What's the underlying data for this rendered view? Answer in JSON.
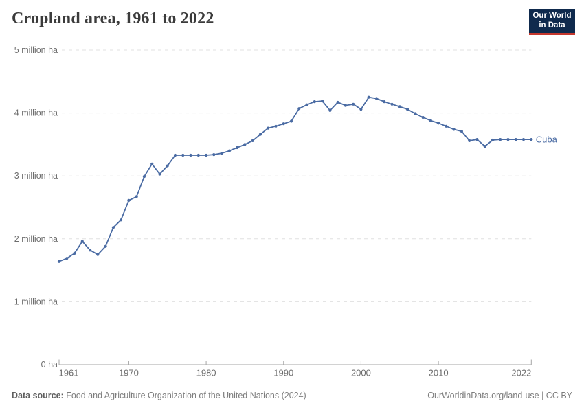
{
  "header": {
    "title": "Cropland area, 1961 to 2022",
    "logo": {
      "line1": "Our World",
      "line2": "in Data"
    }
  },
  "footer": {
    "source_label": "Data source:",
    "source_text": " Food and Agriculture Organization of the United Nations (2024)",
    "right_text": "OurWorldinData.org/land-use | CC BY"
  },
  "colors": {
    "line": "#4a6ba3",
    "grid": "#e0e0e0",
    "axis": "#a6a6a6",
    "tick_label": "#6d6d6d",
    "title": "#3b3b3b",
    "logo_bg": "#0f2a4d",
    "logo_accent": "#c5382e"
  },
  "chart_data": {
    "type": "line",
    "title": "Cropland area, 1961 to 2022",
    "entity": "Cuba",
    "unit": "ha",
    "grid": true,
    "legend_position": "end-of-line",
    "x_range": [
      1961,
      2022
    ],
    "y_range": [
      0,
      5000000
    ],
    "x_ticks": [
      1961,
      1970,
      1980,
      1990,
      2000,
      2010,
      2022
    ],
    "y_ticks": [
      {
        "value": 0,
        "label": "0 ha"
      },
      {
        "value": 1000000,
        "label": "1 million ha"
      },
      {
        "value": 2000000,
        "label": "2 million ha"
      },
      {
        "value": 3000000,
        "label": "3 million ha"
      },
      {
        "value": 4000000,
        "label": "4 million ha"
      },
      {
        "value": 5000000,
        "label": "5 million ha"
      }
    ],
    "series": [
      {
        "name": "Cuba",
        "color": "#4a6ba3",
        "points": [
          [
            1961,
            1640000
          ],
          [
            1962,
            1690000
          ],
          [
            1963,
            1770000
          ],
          [
            1964,
            1960000
          ],
          [
            1965,
            1820000
          ],
          [
            1966,
            1750000
          ],
          [
            1967,
            1880000
          ],
          [
            1968,
            2180000
          ],
          [
            1969,
            2300000
          ],
          [
            1970,
            2610000
          ],
          [
            1971,
            2670000
          ],
          [
            1972,
            2990000
          ],
          [
            1973,
            3190000
          ],
          [
            1974,
            3030000
          ],
          [
            1975,
            3160000
          ],
          [
            1976,
            3330000
          ],
          [
            1977,
            3330000
          ],
          [
            1978,
            3330000
          ],
          [
            1979,
            3330000
          ],
          [
            1980,
            3330000
          ],
          [
            1981,
            3340000
          ],
          [
            1982,
            3360000
          ],
          [
            1983,
            3400000
          ],
          [
            1984,
            3450000
          ],
          [
            1985,
            3500000
          ],
          [
            1986,
            3560000
          ],
          [
            1987,
            3660000
          ],
          [
            1988,
            3760000
          ],
          [
            1989,
            3790000
          ],
          [
            1990,
            3830000
          ],
          [
            1991,
            3870000
          ],
          [
            1992,
            4070000
          ],
          [
            1993,
            4130000
          ],
          [
            1994,
            4180000
          ],
          [
            1995,
            4190000
          ],
          [
            1996,
            4040000
          ],
          [
            1997,
            4170000
          ],
          [
            1998,
            4120000
          ],
          [
            1999,
            4140000
          ],
          [
            2000,
            4060000
          ],
          [
            2001,
            4250000
          ],
          [
            2002,
            4230000
          ],
          [
            2003,
            4180000
          ],
          [
            2004,
            4140000
          ],
          [
            2005,
            4100000
          ],
          [
            2006,
            4060000
          ],
          [
            2007,
            3990000
          ],
          [
            2008,
            3930000
          ],
          [
            2009,
            3880000
          ],
          [
            2010,
            3840000
          ],
          [
            2011,
            3790000
          ],
          [
            2012,
            3740000
          ],
          [
            2013,
            3710000
          ],
          [
            2014,
            3560000
          ],
          [
            2015,
            3580000
          ],
          [
            2016,
            3470000
          ],
          [
            2017,
            3570000
          ],
          [
            2018,
            3580000
          ],
          [
            2019,
            3580000
          ],
          [
            2020,
            3580000
          ],
          [
            2021,
            3580000
          ],
          [
            2022,
            3580000
          ]
        ]
      }
    ]
  }
}
